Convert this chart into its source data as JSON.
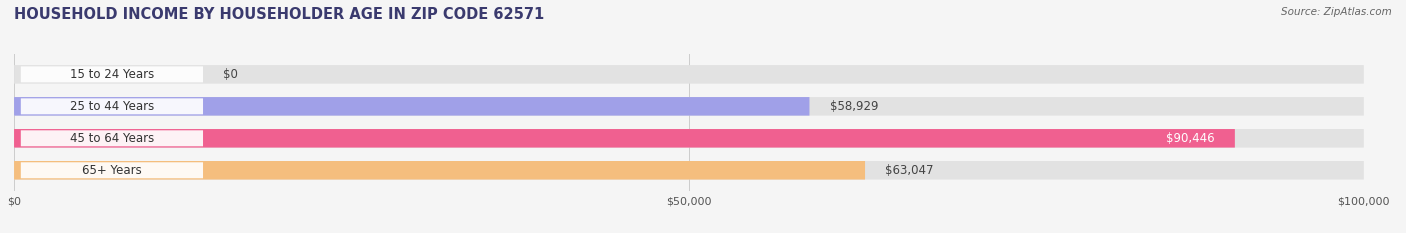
{
  "title": "HOUSEHOLD INCOME BY HOUSEHOLDER AGE IN ZIP CODE 62571",
  "source_text": "Source: ZipAtlas.com",
  "categories": [
    "15 to 24 Years",
    "25 to 44 Years",
    "45 to 64 Years",
    "65+ Years"
  ],
  "values": [
    0,
    58929,
    90446,
    63047
  ],
  "bar_colors": [
    "#7fd8e0",
    "#a0a0e8",
    "#f06090",
    "#f5be7e"
  ],
  "label_colors": [
    "#333333",
    "#333333",
    "#ffffff",
    "#333333"
  ],
  "value_labels": [
    "$0",
    "$58,929",
    "$90,446",
    "$63,047"
  ],
  "xlim": [
    0,
    100000
  ],
  "xtick_values": [
    0,
    50000,
    100000
  ],
  "xtick_labels": [
    "$0",
    "$50,000",
    "$100,000"
  ],
  "background_color": "#f5f5f5",
  "bar_background_color": "#e2e2e2",
  "title_color": "#3a3a6e",
  "title_fontsize": 10.5,
  "source_fontsize": 7.5,
  "label_fontsize": 8.5,
  "value_fontsize": 8.5,
  "tick_fontsize": 8,
  "label_bg_color": "#ffffff"
}
